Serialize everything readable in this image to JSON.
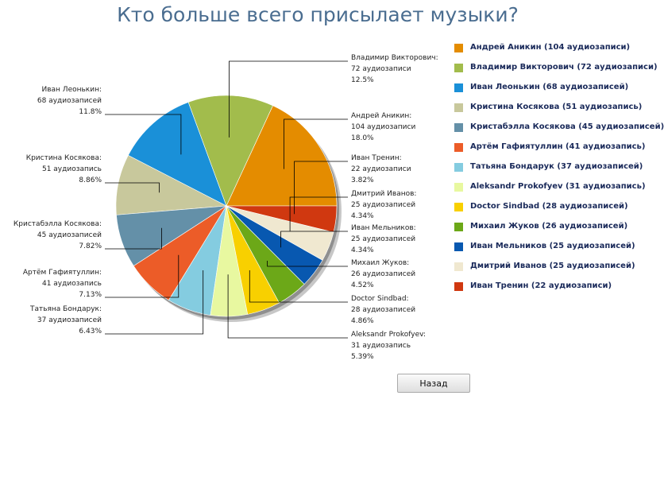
{
  "page": {
    "title": "Кто больше всего присылает музыки?"
  },
  "back_button": {
    "label": "Назад"
  },
  "chart_data": {
    "type": "pie",
    "title": "Кто больше всего присылает музыки?",
    "legend_position": "right",
    "slices": [
      {
        "name": "Андрей Аникин",
        "value": 104,
        "percent": "18.0%",
        "unit": "104 аудиозаписи",
        "legend": "Андрей Аникин (104 аудиозаписи)",
        "color": "#E48C00"
      },
      {
        "name": "Владимир Викторович",
        "value": 72,
        "percent": "12.5%",
        "unit": "72 аудиозаписи",
        "legend": "Владимир Викторович (72 аудиозаписи)",
        "color": "#A2BC4C"
      },
      {
        "name": "Иван Леонькин",
        "value": 68,
        "percent": "11.8%",
        "unit": "68 аудиозаписей",
        "legend": "Иван Леонькин (68 аудиозаписей)",
        "color": "#1A90D8"
      },
      {
        "name": "Кристина Косякова",
        "value": 51,
        "percent": "8.86%",
        "unit": "51 аудиозапись",
        "legend": "Кристина Косякова (51 аудиозапись)",
        "color": "#C8C89C"
      },
      {
        "name": "Кристабэлла Косякова",
        "value": 45,
        "percent": "7.82%",
        "unit": "45 аудиозаписей",
        "legend": "Кристабэлла Косякова (45 аудиозаписей)",
        "color": "#6490A8"
      },
      {
        "name": "Артём Гафиятуллин",
        "value": 41,
        "percent": "7.13%",
        "unit": "41 аудиозапись",
        "legend": "Артём Гафиятуллин (41 аудиозапись)",
        "color": "#EC5C28"
      },
      {
        "name": "Татьяна Бондарук",
        "value": 37,
        "percent": "6.43%",
        "unit": "37 аудиозаписей",
        "legend": "Татьяна Бондарук (37 аудиозаписей)",
        "color": "#84CCE0"
      },
      {
        "name": "Aleksandr Prokofyev",
        "value": 31,
        "percent": "5.39%",
        "unit": "31 аудиозапись",
        "legend": "Aleksandr Prokofyev (31 аудиозапись)",
        "color": "#E8F8A0"
      },
      {
        "name": "Doctor Sindbad",
        "value": 28,
        "percent": "4.86%",
        "unit": "28 аудиозаписей",
        "legend": "Doctor Sindbad (28 аудиозаписей)",
        "color": "#F8D000"
      },
      {
        "name": "Михаил Жуков",
        "value": 26,
        "percent": "4.52%",
        "unit": "26 аудиозаписей",
        "legend": "Михаил Жуков (26 аудиозаписей)",
        "color": "#6CA818"
      },
      {
        "name": "Иван Мельников",
        "value": 25,
        "percent": "4.34%",
        "unit": "25 аудиозаписей",
        "legend": "Иван Мельников (25 аудиозаписей)",
        "color": "#0858B0"
      },
      {
        "name": "Дмитрий Иванов",
        "value": 25,
        "percent": "4.34%",
        "unit": "25 аудиозаписей",
        "legend": "Дмитрий Иванов (25 аудиозаписей)",
        "color": "#F0E8D0"
      },
      {
        "name": "Иван Тренин",
        "value": 22,
        "percent": "3.82%",
        "unit": "22 аудиозаписи",
        "legend": "Иван Тренин (22 аудиозаписи)",
        "color": "#D03810"
      }
    ]
  }
}
